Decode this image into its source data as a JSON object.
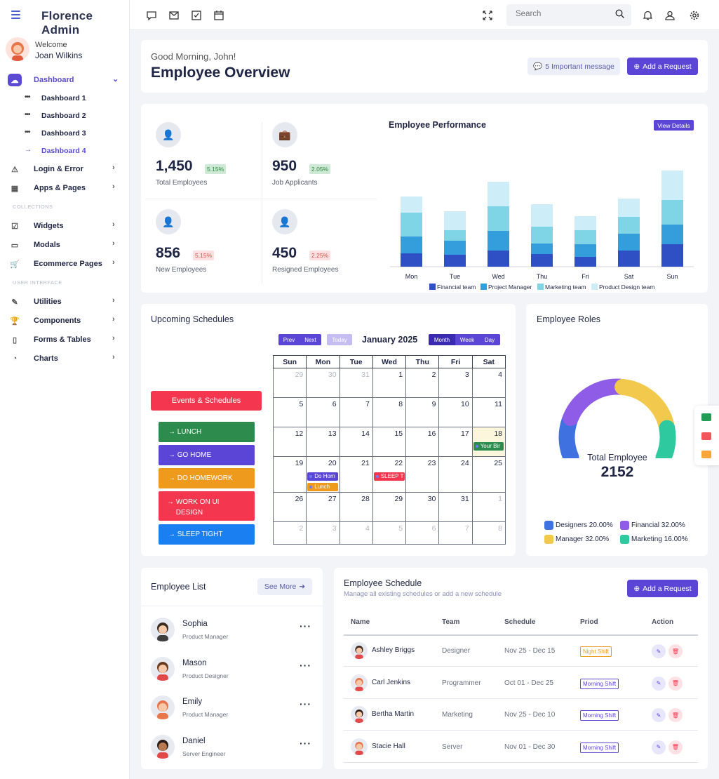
{
  "app": {
    "title": "Florence Admin"
  },
  "sidebar": {
    "welcome": "Welcome",
    "user_name": "Joan Wilkins",
    "items": [
      {
        "label": "Dashboard",
        "icon": "cloud-icon"
      },
      {
        "label": "Login & Error",
        "icon": "warning-icon"
      },
      {
        "label": "Apps & Pages",
        "icon": "grid-icon"
      },
      {
        "label": "Widgets",
        "icon": "checkbox-icon"
      },
      {
        "label": "Modals",
        "icon": "card-icon"
      },
      {
        "label": "Ecommerce Pages",
        "icon": "cart-icon"
      },
      {
        "label": "Utilities",
        "icon": "edit-icon"
      },
      {
        "label": "Components",
        "icon": "trophy-icon"
      },
      {
        "label": "Forms & Tables",
        "icon": "file-icon"
      },
      {
        "label": "Charts",
        "icon": "pie-icon"
      }
    ],
    "sub_items": [
      "Dashboard 1",
      "Dashboard 2",
      "Dashboard 3",
      "Dashboard 4"
    ],
    "sections": [
      "COLLECTIONS",
      "USER INTERFACE"
    ]
  },
  "topbar": {
    "search_placeholder": "Search"
  },
  "hero": {
    "greeting": "Good Morning, John!",
    "title": "Employee Overview",
    "message_button": "5 Important message",
    "request_button": "Add a Request"
  },
  "stats": [
    {
      "value": "1,450",
      "change": "5.15%",
      "label": "Total Employees",
      "trend": "up"
    },
    {
      "value": "950",
      "change": "2.05%",
      "label": "Job Applicants",
      "trend": "up"
    },
    {
      "value": "856",
      "change": "5.15%",
      "label": "New Employees",
      "trend": "down"
    },
    {
      "value": "450",
      "change": "2.25%",
      "label": "Resigned Employees",
      "trend": "down"
    }
  ],
  "performance": {
    "title": "Employee Performance",
    "button": "View Details",
    "chart_data": {
      "type": "bar",
      "stacked": true,
      "categories": [
        "Mon",
        "Tue",
        "Wed",
        "Thu",
        "Fri",
        "Sat",
        "Sun"
      ],
      "series": [
        {
          "name": "Financial team",
          "color": "#2f4fc4",
          "values": [
            19,
            17,
            23,
            18,
            14,
            23,
            32
          ]
        },
        {
          "name": "Project Manager",
          "color": "#349ddb",
          "values": [
            24,
            20,
            28,
            15,
            18,
            24,
            28
          ]
        },
        {
          "name": "Marketing team",
          "color": "#7fd4e6",
          "values": [
            34,
            15,
            35,
            24,
            20,
            24,
            35
          ]
        },
        {
          "name": "Product Design team",
          "color": "#cdeef8",
          "values": [
            23,
            27,
            35,
            32,
            20,
            26,
            42
          ]
        }
      ]
    }
  },
  "schedules": {
    "title": "Upcoming Schedules",
    "events_button": "Events & Schedules",
    "events": [
      {
        "label": "LUNCH",
        "color": "#2e8b4e"
      },
      {
        "label": "GO HOME",
        "color": "#5b45d6"
      },
      {
        "label": "DO HOMEWORK",
        "color": "#ee9a1c"
      },
      {
        "label": "WORK ON UI DESIGN",
        "color": "#f4374e"
      },
      {
        "label": "SLEEP TIGHT",
        "color": "#1a7ff0"
      }
    ],
    "calendar": {
      "prev": "Prev",
      "next": "Next",
      "today": "Today",
      "month_label": "January 2025",
      "views": [
        "Month",
        "Week",
        "Day"
      ],
      "weekdays": [
        "Sun",
        "Mon",
        "Tue",
        "Wed",
        "Thu",
        "Fri",
        "Sat"
      ],
      "weeks": [
        [
          "29",
          "30",
          "31",
          "1",
          "2",
          "3",
          "4"
        ],
        [
          "5",
          "6",
          "7",
          "8",
          "9",
          "10",
          "11"
        ],
        [
          "12",
          "13",
          "14",
          "15",
          "16",
          "17",
          "18"
        ],
        [
          "19",
          "20",
          "21",
          "22",
          "23",
          "24",
          "25"
        ],
        [
          "26",
          "27",
          "28",
          "29",
          "30",
          "31",
          "1"
        ],
        [
          "2",
          "3",
          "4",
          "5",
          "6",
          "7",
          "8"
        ]
      ],
      "cal_events": [
        "Your Bir",
        "Do Hom",
        "Lunch",
        "SLEEP T"
      ]
    }
  },
  "roles": {
    "title": "Employee Roles",
    "center_label": "Total Employee",
    "center_value": "2152",
    "chart_data": {
      "type": "pie",
      "slices": [
        {
          "name": "Designers",
          "value": 20,
          "color": "#3f72e0"
        },
        {
          "name": "Financial",
          "value": 32,
          "color": "#8f5ce8"
        },
        {
          "name": "Manager",
          "value": 32,
          "color": "#f2c94c"
        },
        {
          "name": "Marketing",
          "value": 16,
          "color": "#2fc9a0"
        }
      ],
      "legend": [
        "Designers 20.00%",
        "Financial 32.00%",
        "Manager 32.00%",
        "Marketing 16.00%"
      ]
    }
  },
  "employee_list": {
    "title": "Employee List",
    "see_more": "See More",
    "items": [
      {
        "name": "Sophia",
        "role": "Product Manager"
      },
      {
        "name": "Mason",
        "role": "Product Designer"
      },
      {
        "name": "Emily",
        "role": "Product Manager"
      },
      {
        "name": "Daniel",
        "role": "Server Engineer"
      }
    ]
  },
  "employee_schedule": {
    "title": "Employee Schedule",
    "subtitle": "Manage all existing schedules or add a new schedule",
    "button": "Add a Request",
    "headers": [
      "Name",
      "Team",
      "Schedule",
      "Priod",
      "Action"
    ],
    "rows": [
      {
        "name": "Ashley Briggs",
        "team": "Designer",
        "schedule": "Nov 25 - Dec 15",
        "shift": "Night Shift"
      },
      {
        "name": "Carl Jenkins",
        "team": "Programmer",
        "schedule": "Oct 01 - Dec 25",
        "shift": "Morning Shift"
      },
      {
        "name": "Bertha Martin",
        "team": "Marketing",
        "schedule": "Nov 25 - Dec 10",
        "shift": "Morning Shift"
      },
      {
        "name": "Stacie Hall",
        "team": "Server",
        "schedule": "Nov 01 - Dec 30",
        "shift": "Morning Shift"
      }
    ]
  }
}
